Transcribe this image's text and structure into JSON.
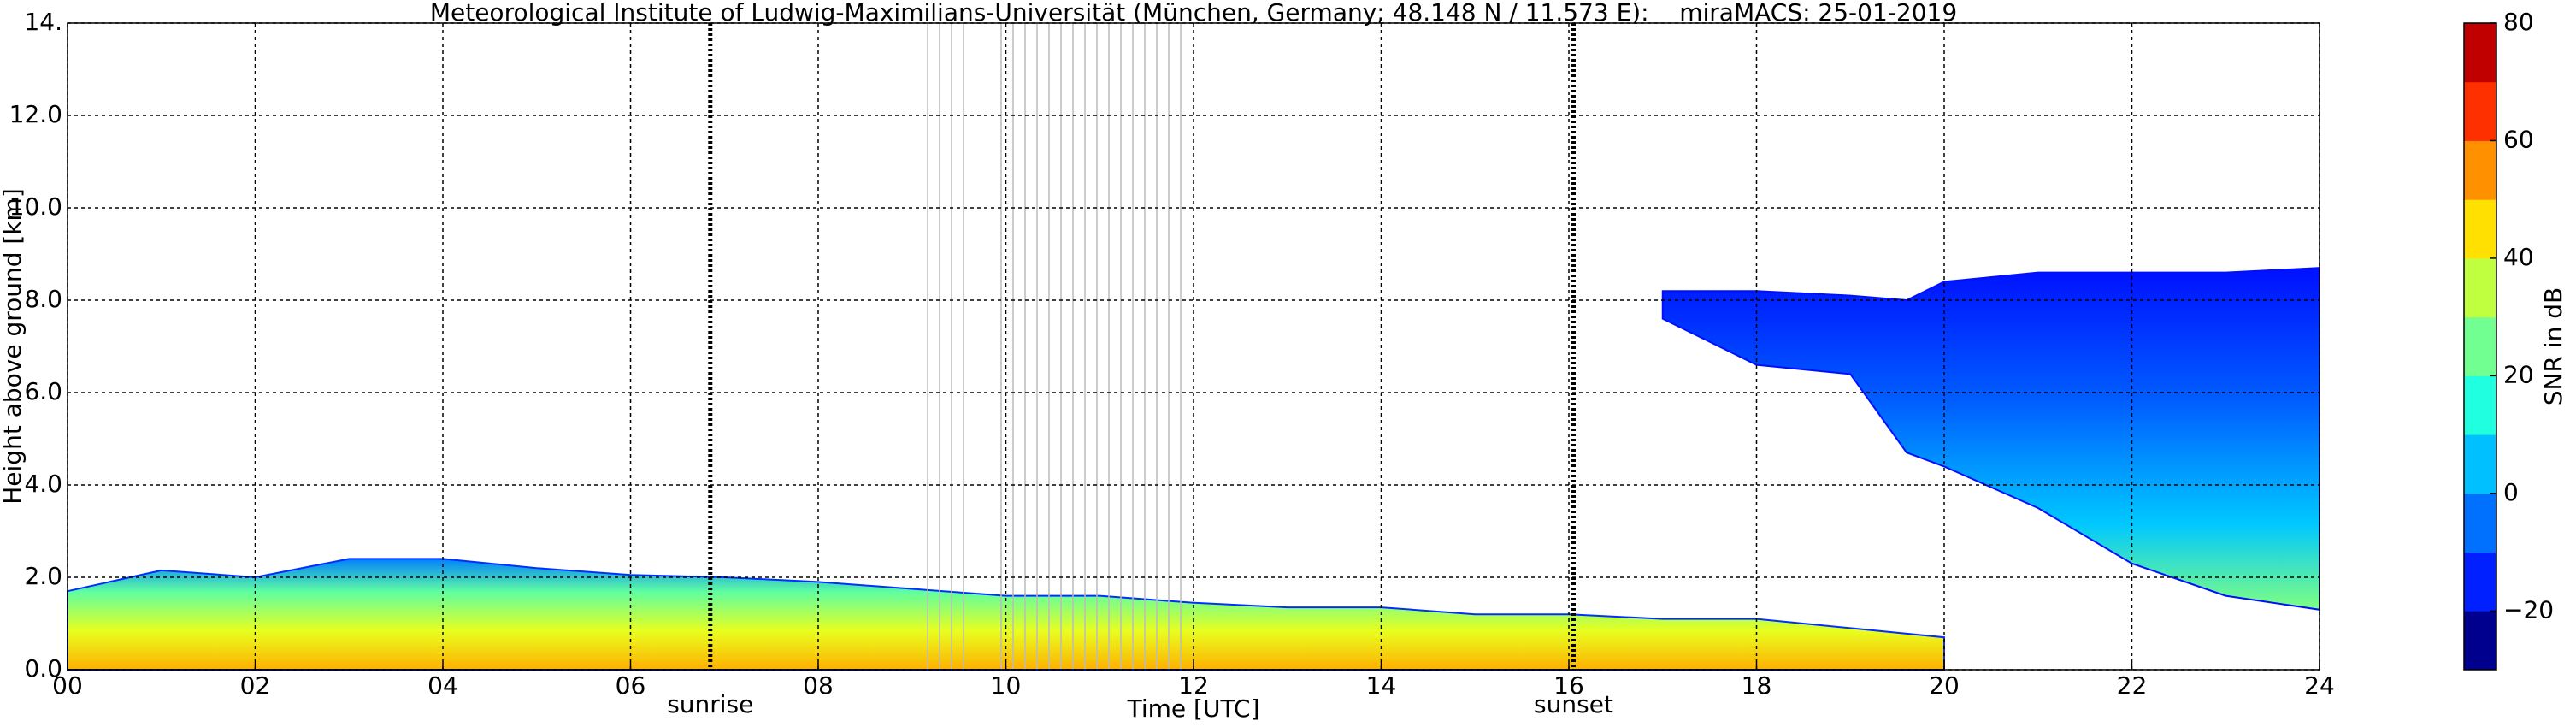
{
  "chart_data": {
    "type": "time-height",
    "title": "Meteorological Institute of Ludwig-Maximilians-Universität (München, Germany; 48.148 N / 11.573 E):    miraMACS: 25-01-2019",
    "x_label": "Time [UTC]",
    "y_label": "Height above ground [km]",
    "xlim": [
      0,
      24
    ],
    "xticks": [
      {
        "value": 0,
        "label": "00"
      },
      {
        "value": 2,
        "label": "02"
      },
      {
        "value": 4,
        "label": "04"
      },
      {
        "value": 6,
        "label": "06"
      },
      {
        "value": 8,
        "label": "08"
      },
      10,
      12,
      14,
      16,
      18,
      20,
      22,
      24
    ],
    "ylim": [
      0,
      14
    ],
    "yticks": [
      {
        "value": 0,
        "label": "0.0"
      },
      {
        "value": 2,
        "label": "2.0"
      },
      {
        "value": 4,
        "label": "4.0"
      },
      {
        "value": 6,
        "label": "6.0"
      },
      {
        "value": 8,
        "label": "8.0"
      },
      {
        "value": 10,
        "label": "10.0"
      },
      {
        "value": 12,
        "label": "12.0"
      },
      {
        "value": 14,
        "label": "14."
      }
    ],
    "grid": true,
    "markers": [
      {
        "label": "sunrise",
        "x": 6.85
      },
      {
        "label": "sunset",
        "x": 16.05
      }
    ],
    "layers": [
      {
        "x": [
          0,
          1,
          2,
          3,
          4,
          5,
          6,
          7,
          8,
          9,
          10,
          11,
          12,
          13,
          14,
          15,
          16,
          17,
          18,
          19,
          20
        ],
        "top": [
          1.7,
          2.15,
          2.0,
          2.4,
          2.4,
          2.2,
          2.05,
          2.0,
          1.9,
          1.75,
          1.6,
          1.6,
          1.45,
          1.35,
          1.35,
          1.2,
          1.2,
          1.1,
          1.1,
          0.9,
          0.7
        ],
        "base": [
          0,
          0,
          0,
          0,
          0,
          0,
          0,
          0,
          0,
          0,
          0,
          0,
          0,
          0,
          0,
          0,
          0,
          0,
          0,
          0,
          0
        ]
      },
      {
        "x": [
          17,
          18,
          19,
          19.6,
          20,
          21,
          22,
          23,
          24
        ],
        "top": [
          8.2,
          8.2,
          8.1,
          8.0,
          8.4,
          8.6,
          8.6,
          8.6,
          8.7
        ],
        "base": [
          7.6,
          6.6,
          6.4,
          4.7,
          4.4,
          3.5,
          2.3,
          1.6,
          1.3
        ]
      }
    ],
    "colorbar": {
      "label": "SNR in dB",
      "clim": [
        -30,
        80
      ],
      "ticks": [
        {
          "value": -20,
          "label": "−20"
        },
        0,
        20,
        40,
        60,
        80
      ],
      "colors": [
        "#00008f",
        "#0020ff",
        "#0070ff",
        "#00c0ff",
        "#20ffe0",
        "#70ff90",
        "#c0ff40",
        "#ffe000",
        "#ff9000",
        "#ff3000",
        "#c00000"
      ]
    }
  }
}
